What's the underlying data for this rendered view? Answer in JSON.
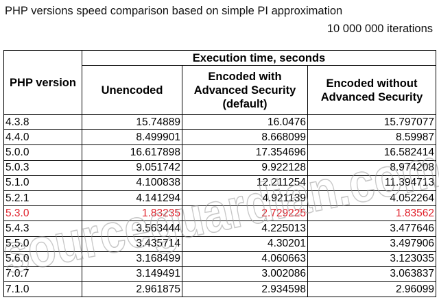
{
  "caption": {
    "title": "PHP versions speed comparison based on simple PI approximation",
    "iterations": "10 000 000 iterations"
  },
  "table": {
    "php_version_header": "PHP version",
    "group_header": "Execution time, seconds",
    "columns": [
      "Unencoded",
      "Encoded with Advanced Security (default)",
      "Encoded without Advanced Security"
    ],
    "highlight_color": "#e0202a",
    "rows": [
      {
        "version": "4.3.8",
        "unencoded": "15.74889",
        "encoded_adv": "16.0476",
        "encoded_no_adv": "15.797077",
        "highlight": false
      },
      {
        "version": "4.4.0",
        "unencoded": "8.499901",
        "encoded_adv": "8.668099",
        "encoded_no_adv": "8.59987",
        "highlight": false
      },
      {
        "version": "5.0.0",
        "unencoded": "16.617898",
        "encoded_adv": "17.354696",
        "encoded_no_adv": "16.582414",
        "highlight": false
      },
      {
        "version": "5.0.3",
        "unencoded": "9.051742",
        "encoded_adv": "9.922128",
        "encoded_no_adv": "8.974208",
        "highlight": false
      },
      {
        "version": "5.1.0",
        "unencoded": "4.100838",
        "encoded_adv": "12.211254",
        "encoded_no_adv": "11.394713",
        "highlight": false
      },
      {
        "version": "5.2.1",
        "unencoded": "4.141294",
        "encoded_adv": "4.921139",
        "encoded_no_adv": "4.052264",
        "highlight": false
      },
      {
        "version": "5.3.0",
        "unencoded": "1.83235",
        "encoded_adv": "2.729225",
        "encoded_no_adv": "1.83562",
        "highlight": true
      },
      {
        "version": "5.4.3",
        "unencoded": "3.563444",
        "encoded_adv": "4.225013",
        "encoded_no_adv": "3.477646",
        "highlight": false
      },
      {
        "version": "5.5.0",
        "unencoded": "3.435714",
        "encoded_adv": "4.30201",
        "encoded_no_adv": "3.497906",
        "highlight": false
      },
      {
        "version": "5.6.0",
        "unencoded": "3.168499",
        "encoded_adv": "4.060663",
        "encoded_no_adv": "3.123035",
        "highlight": false
      },
      {
        "version": "7.0.7",
        "unencoded": "3.149491",
        "encoded_adv": "3.002086",
        "encoded_no_adv": "3.063837",
        "highlight": false
      },
      {
        "version": "7.1.0",
        "unencoded": "2.961875",
        "encoded_adv": "2.934598",
        "encoded_no_adv": "2.96099",
        "highlight": false
      }
    ]
  },
  "watermark": {
    "text": "sourceguardian.com",
    "color": "#9a9a9a"
  }
}
